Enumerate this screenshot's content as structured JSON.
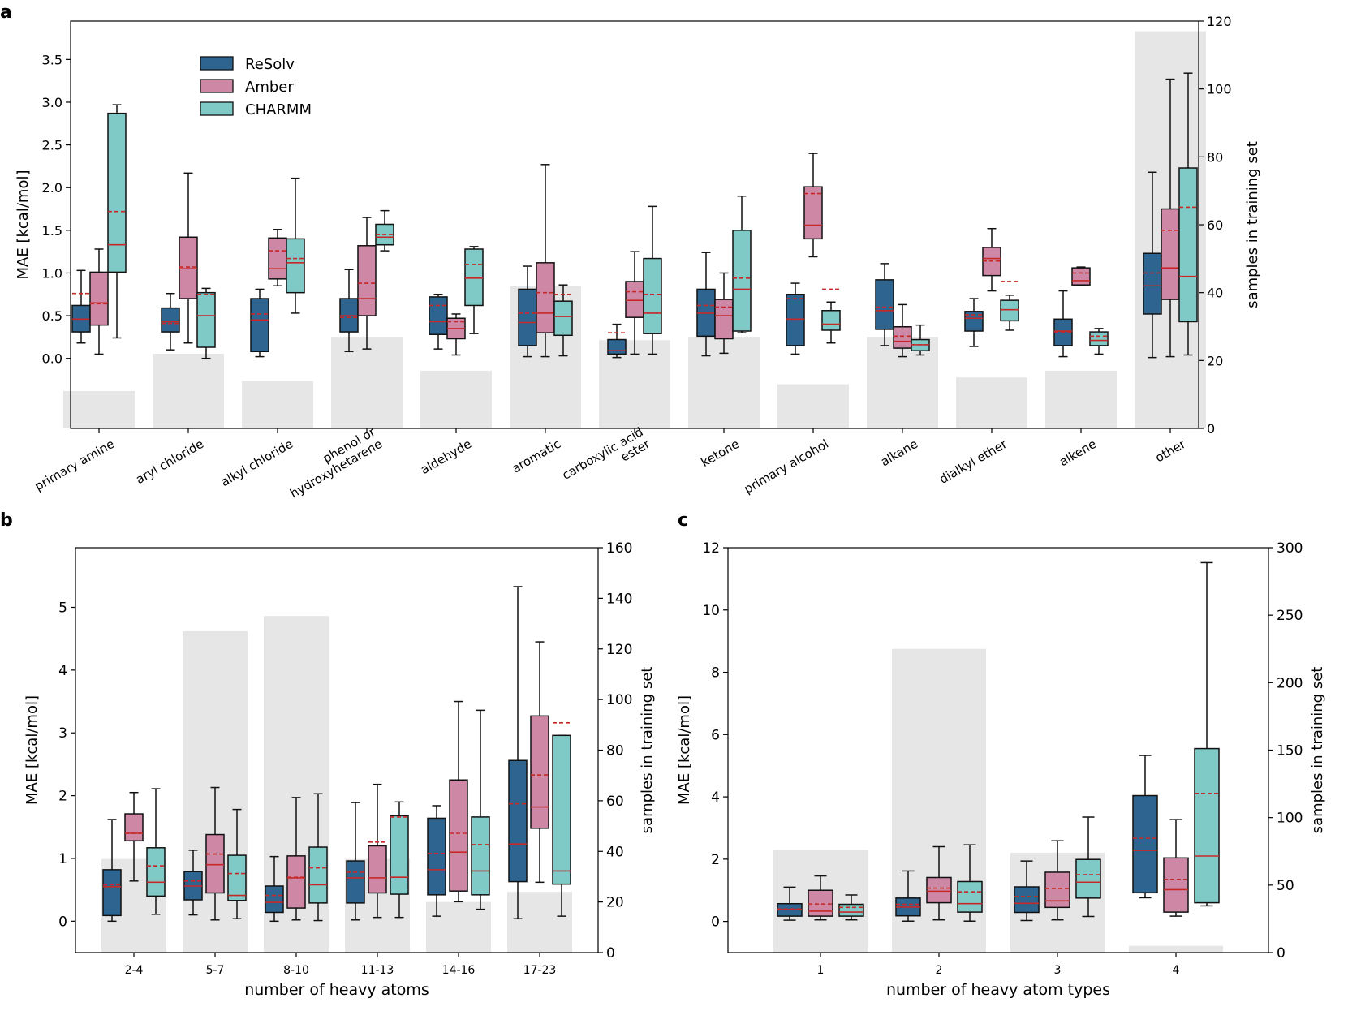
{
  "legend": [
    {
      "name": "ReSolv",
      "color": "#2e6590"
    },
    {
      "name": "Amber",
      "color": "#cf87a6"
    },
    {
      "name": "CHARMM",
      "color": "#7fcac6"
    }
  ],
  "style": {
    "bar_color": "#e6e6e6",
    "median_color": "#c62828",
    "mean_color": "#c62828",
    "box_edge": "#111111"
  },
  "chart_data": [
    {
      "panel": "a",
      "type": "box",
      "ylabel": "MAE [kcal/mol]",
      "y2label": "samples in training set",
      "ylim": [
        -0.82,
        3.95
      ],
      "y2lim": [
        0,
        120
      ],
      "yticks": [
        "0.0",
        "0.5",
        "1.0",
        "1.5",
        "2.0",
        "2.5",
        "3.0",
        "3.5"
      ],
      "y2ticks": [
        "0",
        "20",
        "40",
        "60",
        "80",
        "100",
        "120"
      ],
      "categories": [
        {
          "label": [
            "primary amine"
          ],
          "count": 11,
          "boxes": [
            {
              "wl": 0.18,
              "q1": 0.31,
              "med": 0.46,
              "q3": 0.62,
              "wh": 1.03,
              "mean": 0.76
            },
            {
              "wl": 0.05,
              "q1": 0.39,
              "med": 0.65,
              "q3": 1.01,
              "wh": 1.28,
              "mean": 0.64
            },
            {
              "wl": 0.24,
              "q1": 1.01,
              "med": 1.33,
              "q3": 2.87,
              "wh": 2.97,
              "mean": 1.72
            }
          ]
        },
        {
          "label": [
            "aryl chloride"
          ],
          "count": 22,
          "boxes": [
            {
              "wl": 0.1,
              "q1": 0.31,
              "med": 0.43,
              "q3": 0.59,
              "wh": 0.76,
              "mean": 0.41
            },
            {
              "wl": 0.18,
              "q1": 0.7,
              "med": 1.05,
              "q3": 1.42,
              "wh": 2.17,
              "mean": 1.07
            },
            {
              "wl": 0.0,
              "q1": 0.13,
              "med": 0.5,
              "q3": 0.77,
              "wh": 0.82,
              "mean": 0.75
            }
          ]
        },
        {
          "label": [
            "alkyl chloride"
          ],
          "count": 14,
          "boxes": [
            {
              "wl": 0.02,
              "q1": 0.08,
              "med": 0.45,
              "q3": 0.7,
              "wh": 0.81,
              "mean": 0.52
            },
            {
              "wl": 0.85,
              "q1": 0.93,
              "med": 1.05,
              "q3": 1.41,
              "wh": 1.51,
              "mean": 1.26
            },
            {
              "wl": 0.53,
              "q1": 0.77,
              "med": 1.12,
              "q3": 1.4,
              "wh": 2.11,
              "mean": 1.17
            }
          ]
        },
        {
          "label": [
            "phenol or",
            "hydroxyhetarene"
          ],
          "count": 27,
          "boxes": [
            {
              "wl": 0.08,
              "q1": 0.31,
              "med": 0.5,
              "q3": 0.7,
              "wh": 1.04,
              "mean": 0.48
            },
            {
              "wl": 0.11,
              "q1": 0.5,
              "med": 0.7,
              "q3": 1.32,
              "wh": 1.65,
              "mean": 0.88
            },
            {
              "wl": 1.26,
              "q1": 1.33,
              "med": 1.42,
              "q3": 1.57,
              "wh": 1.73,
              "mean": 1.45
            }
          ]
        },
        {
          "label": [
            "aldehyde"
          ],
          "count": 17,
          "boxes": [
            {
              "wl": 0.11,
              "q1": 0.28,
              "med": 0.43,
              "q3": 0.72,
              "wh": 0.75,
              "mean": 0.62
            },
            {
              "wl": 0.04,
              "q1": 0.23,
              "med": 0.35,
              "q3": 0.47,
              "wh": 0.52,
              "mean": 0.43
            },
            {
              "wl": 0.29,
              "q1": 0.62,
              "med": 0.94,
              "q3": 1.28,
              "wh": 1.31,
              "mean": 1.1
            }
          ]
        },
        {
          "label": [
            "aromatic"
          ],
          "count": 42,
          "boxes": [
            {
              "wl": 0.02,
              "q1": 0.15,
              "med": 0.42,
              "q3": 0.81,
              "wh": 1.08,
              "mean": 0.53
            },
            {
              "wl": 0.02,
              "q1": 0.3,
              "med": 0.53,
              "q3": 1.12,
              "wh": 2.27,
              "mean": 0.77
            },
            {
              "wl": 0.03,
              "q1": 0.27,
              "med": 0.49,
              "q3": 0.67,
              "wh": 0.86,
              "mean": 0.75
            }
          ]
        },
        {
          "label": [
            "carboxylic acid",
            "ester"
          ],
          "count": 26,
          "boxes": [
            {
              "wl": 0.01,
              "q1": 0.05,
              "med": 0.09,
              "q3": 0.22,
              "wh": 0.4,
              "mean": 0.3
            },
            {
              "wl": 0.05,
              "q1": 0.48,
              "med": 0.68,
              "q3": 0.9,
              "wh": 1.25,
              "mean": 0.78
            },
            {
              "wl": 0.05,
              "q1": 0.29,
              "med": 0.53,
              "q3": 1.17,
              "wh": 1.78,
              "mean": 0.75
            }
          ]
        },
        {
          "label": [
            "ketone"
          ],
          "count": 27,
          "boxes": [
            {
              "wl": 0.03,
              "q1": 0.26,
              "med": 0.53,
              "q3": 0.81,
              "wh": 1.24,
              "mean": 0.62
            },
            {
              "wl": 0.06,
              "q1": 0.23,
              "med": 0.5,
              "q3": 0.69,
              "wh": 1.0,
              "mean": 0.6
            },
            {
              "wl": 0.3,
              "q1": 0.32,
              "med": 0.81,
              "q3": 1.5,
              "wh": 1.9,
              "mean": 0.94
            }
          ]
        },
        {
          "label": [
            "primary alcohol"
          ],
          "count": 13,
          "boxes": [
            {
              "wl": 0.05,
              "q1": 0.15,
              "med": 0.46,
              "q3": 0.75,
              "wh": 0.88,
              "mean": 0.7
            },
            {
              "wl": 1.19,
              "q1": 1.4,
              "med": 1.56,
              "q3": 2.01,
              "wh": 2.4,
              "mean": 1.93
            },
            {
              "wl": 0.18,
              "q1": 0.33,
              "med": 0.4,
              "q3": 0.56,
              "wh": 0.66,
              "mean": 0.81
            }
          ]
        },
        {
          "label": [
            "alkane"
          ],
          "count": 27,
          "boxes": [
            {
              "wl": 0.15,
              "q1": 0.34,
              "med": 0.56,
              "q3": 0.92,
              "wh": 1.11,
              "mean": 0.6
            },
            {
              "wl": 0.02,
              "q1": 0.12,
              "med": 0.2,
              "q3": 0.37,
              "wh": 0.63,
              "mean": 0.26
            },
            {
              "wl": 0.04,
              "q1": 0.09,
              "med": 0.16,
              "q3": 0.22,
              "wh": 0.39,
              "mean": 0.16
            }
          ]
        },
        {
          "label": [
            "dialkyl ether"
          ],
          "count": 15,
          "boxes": [
            {
              "wl": 0.14,
              "q1": 0.32,
              "med": 0.47,
              "q3": 0.55,
              "wh": 0.7,
              "mean": 0.51
            },
            {
              "wl": 0.79,
              "q1": 0.97,
              "med": 1.17,
              "q3": 1.3,
              "wh": 1.52,
              "mean": 1.14
            },
            {
              "wl": 0.33,
              "q1": 0.44,
              "med": 0.57,
              "q3": 0.68,
              "wh": 0.74,
              "mean": 0.9
            }
          ]
        },
        {
          "label": [
            "alkene"
          ],
          "count": 17,
          "boxes": [
            {
              "wl": 0.02,
              "q1": 0.15,
              "med": 0.32,
              "q3": 0.46,
              "wh": 0.79,
              "mean": 0.31
            },
            {
              "wl": 0.86,
              "q1": 0.86,
              "med": 0.91,
              "q3": 1.06,
              "wh": 1.07,
              "mean": 1.0
            },
            {
              "wl": 0.05,
              "q1": 0.15,
              "med": 0.21,
              "q3": 0.31,
              "wh": 0.35,
              "mean": 0.26
            }
          ]
        },
        {
          "label": [
            "other"
          ],
          "count": 117,
          "boxes": [
            {
              "wl": 0.01,
              "q1": 0.52,
              "med": 0.85,
              "q3": 1.23,
              "wh": 2.18,
              "mean": 1.0
            },
            {
              "wl": 0.02,
              "q1": 0.69,
              "med": 1.06,
              "q3": 1.75,
              "wh": 3.27,
              "mean": 1.5
            },
            {
              "wl": 0.04,
              "q1": 0.43,
              "med": 0.96,
              "q3": 2.23,
              "wh": 3.34,
              "mean": 1.77
            }
          ]
        }
      ]
    },
    {
      "panel": "b",
      "type": "box",
      "xlabel": "number of heavy atoms",
      "ylabel": "MAE [kcal/mol]",
      "y2label": "samples in training set",
      "ylim": [
        -0.5,
        5.95
      ],
      "y2lim": [
        0,
        160
      ],
      "yticks": [
        "0",
        "1",
        "2",
        "3",
        "4",
        "5"
      ],
      "y2ticks": [
        "0",
        "20",
        "40",
        "60",
        "80",
        "100",
        "120",
        "140",
        "160"
      ],
      "categories": [
        {
          "label": [
            "2-4"
          ],
          "count": 37,
          "boxes": [
            {
              "wl": 0.0,
              "q1": 0.09,
              "med": 0.55,
              "q3": 0.82,
              "wh": 1.62,
              "mean": 0.58
            },
            {
              "wl": 0.64,
              "q1": 1.28,
              "med": 1.4,
              "q3": 1.71,
              "wh": 2.05,
              "mean": 1.4
            },
            {
              "wl": 0.11,
              "q1": 0.4,
              "med": 0.62,
              "q3": 1.17,
              "wh": 2.11,
              "mean": 0.88
            }
          ]
        },
        {
          "label": [
            "5-7"
          ],
          "count": 127,
          "boxes": [
            {
              "wl": 0.1,
              "q1": 0.34,
              "med": 0.56,
              "q3": 0.79,
              "wh": 1.13,
              "mean": 0.64
            },
            {
              "wl": 0.02,
              "q1": 0.45,
              "med": 0.9,
              "q3": 1.38,
              "wh": 2.13,
              "mean": 1.07
            },
            {
              "wl": 0.04,
              "q1": 0.33,
              "med": 0.41,
              "q3": 1.05,
              "wh": 1.78,
              "mean": 0.76
            }
          ]
        },
        {
          "label": [
            "8-10"
          ],
          "count": 133,
          "boxes": [
            {
              "wl": 0.0,
              "q1": 0.14,
              "med": 0.3,
              "q3": 0.56,
              "wh": 1.03,
              "mean": 0.41
            },
            {
              "wl": 0.02,
              "q1": 0.21,
              "med": 0.69,
              "q3": 1.04,
              "wh": 1.97,
              "mean": 0.7
            },
            {
              "wl": 0.01,
              "q1": 0.29,
              "med": 0.58,
              "q3": 1.18,
              "wh": 2.03,
              "mean": 0.85
            }
          ]
        },
        {
          "label": [
            "11-13"
          ],
          "count": 37,
          "boxes": [
            {
              "wl": 0.02,
              "q1": 0.29,
              "med": 0.69,
              "q3": 0.96,
              "wh": 1.89,
              "mean": 0.78
            },
            {
              "wl": 0.06,
              "q1": 0.45,
              "med": 0.69,
              "q3": 1.2,
              "wh": 2.18,
              "mean": 1.26
            },
            {
              "wl": 0.06,
              "q1": 0.43,
              "med": 0.7,
              "q3": 1.68,
              "wh": 1.9,
              "mean": 1.66
            }
          ]
        },
        {
          "label": [
            "14-16"
          ],
          "count": 20,
          "boxes": [
            {
              "wl": 0.08,
              "q1": 0.42,
              "med": 0.82,
              "q3": 1.64,
              "wh": 1.84,
              "mean": 1.08
            },
            {
              "wl": 0.31,
              "q1": 0.48,
              "med": 1.1,
              "q3": 2.25,
              "wh": 3.5,
              "mean": 1.4
            },
            {
              "wl": 0.19,
              "q1": 0.42,
              "med": 0.8,
              "q3": 1.66,
              "wh": 3.36,
              "mean": 1.22
            }
          ]
        },
        {
          "label": [
            "17-23"
          ],
          "count": 24,
          "boxes": [
            {
              "wl": 0.04,
              "q1": 0.63,
              "med": 1.23,
              "q3": 2.56,
              "wh": 5.33,
              "mean": 1.87
            },
            {
              "wl": 0.62,
              "q1": 1.48,
              "med": 1.82,
              "q3": 3.27,
              "wh": 4.45,
              "mean": 2.33
            },
            {
              "wl": 0.08,
              "q1": 0.59,
              "med": 0.8,
              "q3": 2.96,
              "wh": 2.96,
              "mean": 3.16
            }
          ]
        }
      ]
    },
    {
      "panel": "c",
      "type": "box",
      "xlabel": "number of heavy atom types",
      "ylabel": "MAE [kcal/mol]",
      "y2label": "samples in training set",
      "ylim": [
        -1.0,
        12.0
      ],
      "y2lim": [
        0,
        300
      ],
      "yticks": [
        "0",
        "2",
        "4",
        "6",
        "8",
        "10",
        "12"
      ],
      "y2ticks": [
        "0",
        "50",
        "100",
        "150",
        "200",
        "250",
        "300"
      ],
      "categories": [
        {
          "label": [
            "1"
          ],
          "count": 76,
          "boxes": [
            {
              "wl": 0.04,
              "q1": 0.17,
              "med": 0.38,
              "q3": 0.57,
              "wh": 1.1,
              "mean": 0.4
            },
            {
              "wl": 0.05,
              "q1": 0.17,
              "med": 0.33,
              "q3": 1.0,
              "wh": 1.46,
              "mean": 0.56
            },
            {
              "wl": 0.05,
              "q1": 0.17,
              "med": 0.3,
              "q3": 0.55,
              "wh": 0.85,
              "mean": 0.45
            }
          ]
        },
        {
          "label": [
            "2"
          ],
          "count": 225,
          "boxes": [
            {
              "wl": 0.01,
              "q1": 0.18,
              "med": 0.46,
              "q3": 0.75,
              "wh": 1.62,
              "mean": 0.55
            },
            {
              "wl": 0.05,
              "q1": 0.6,
              "med": 0.97,
              "q3": 1.41,
              "wh": 2.4,
              "mean": 1.07
            },
            {
              "wl": 0.01,
              "q1": 0.3,
              "med": 0.57,
              "q3": 1.28,
              "wh": 2.46,
              "mean": 0.95
            }
          ]
        },
        {
          "label": [
            "3"
          ],
          "count": 74,
          "boxes": [
            {
              "wl": 0.03,
              "q1": 0.29,
              "med": 0.58,
              "q3": 1.11,
              "wh": 1.94,
              "mean": 0.8
            },
            {
              "wl": 0.05,
              "q1": 0.45,
              "med": 0.66,
              "q3": 1.58,
              "wh": 2.59,
              "mean": 1.06
            },
            {
              "wl": 0.16,
              "q1": 0.75,
              "med": 1.26,
              "q3": 1.99,
              "wh": 3.35,
              "mean": 1.5
            }
          ]
        },
        {
          "label": [
            "4"
          ],
          "count": 5,
          "boxes": [
            {
              "wl": 0.76,
              "q1": 0.92,
              "med": 2.28,
              "q3": 4.04,
              "wh": 5.33,
              "mean": 2.67
            },
            {
              "wl": 0.17,
              "q1": 0.3,
              "med": 1.02,
              "q3": 2.04,
              "wh": 3.27,
              "mean": 1.35
            },
            {
              "wl": 0.5,
              "q1": 0.6,
              "med": 2.1,
              "q3": 5.55,
              "wh": 11.52,
              "mean": 4.11
            }
          ]
        }
      ]
    }
  ]
}
